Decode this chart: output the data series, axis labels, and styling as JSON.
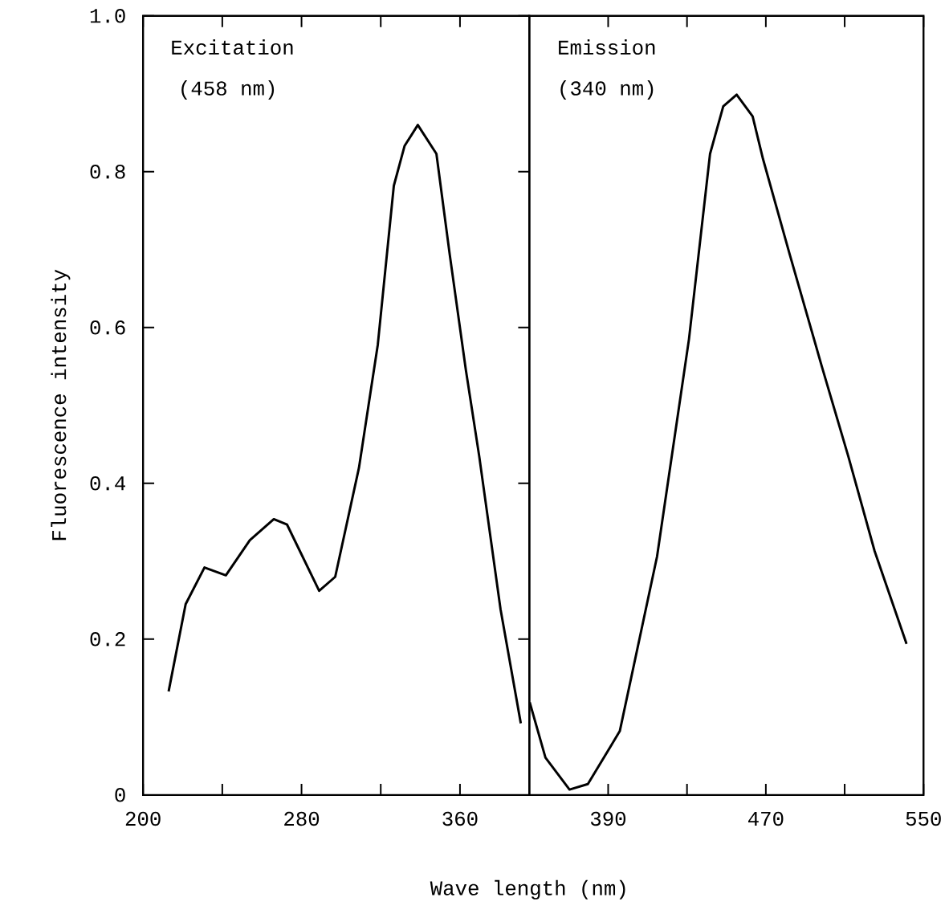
{
  "chart_data": [
    {
      "type": "line",
      "ylabel": "Fluorescence intensity",
      "xlabel": "Wave length (nm)",
      "annotations": [
        "Excitation",
        "(458 nm)"
      ],
      "xlim": [
        200,
        395
      ],
      "xticks": [
        200,
        {
          "value": 240,
          "label": null
        },
        280,
        {
          "value": 320,
          "label": null
        },
        360
      ],
      "ylim": [
        0,
        1.0
      ],
      "yticks": [
        {
          "value": 0,
          "label": "0"
        },
        0.2,
        0.4,
        0.6,
        0.8,
        {
          "value": 1.0,
          "label": "1.0"
        }
      ],
      "series": [
        {
          "color": "#000000",
          "x": [
            212.9,
            221.5,
            231,
            241.8,
            253.9,
            266,
            272.7,
            288.9,
            297,
            309,
            318.5,
            326.6,
            332,
            338.7,
            348.1,
            354.8,
            363,
            369.7,
            380.5,
            390.7
          ],
          "values": [
            0.133,
            0.245,
            0.292,
            0.282,
            0.327,
            0.354,
            0.347,
            0.262,
            0.28,
            0.42,
            0.578,
            0.782,
            0.833,
            0.86,
            0.823,
            0.694,
            0.545,
            0.435,
            0.238,
            0.092
          ]
        }
      ]
    },
    {
      "type": "line",
      "annotations": [
        "Emission",
        "(340 nm)"
      ],
      "tick_labels": "x",
      "xlim": [
        350,
        550
      ],
      "xticks": [
        390,
        {
          "value": 430,
          "label": null
        },
        470,
        {
          "value": 510,
          "label": null
        },
        550
      ],
      "ylim": [
        0,
        1.0
      ],
      "series": [
        {
          "color": "#000000",
          "x": [
            350.2,
            358.2,
            370.4,
            379.7,
            395.9,
            414.8,
            431,
            441.7,
            448.4,
            455.2,
            463.3,
            468.6,
            482.1,
            498.3,
            511.8,
            525.2,
            541.4
          ],
          "values": [
            0.119,
            0.048,
            0.007,
            0.014,
            0.082,
            0.306,
            0.585,
            0.823,
            0.884,
            0.899,
            0.871,
            0.816,
            0.694,
            0.551,
            0.435,
            0.313,
            0.194
          ]
        }
      ]
    }
  ]
}
